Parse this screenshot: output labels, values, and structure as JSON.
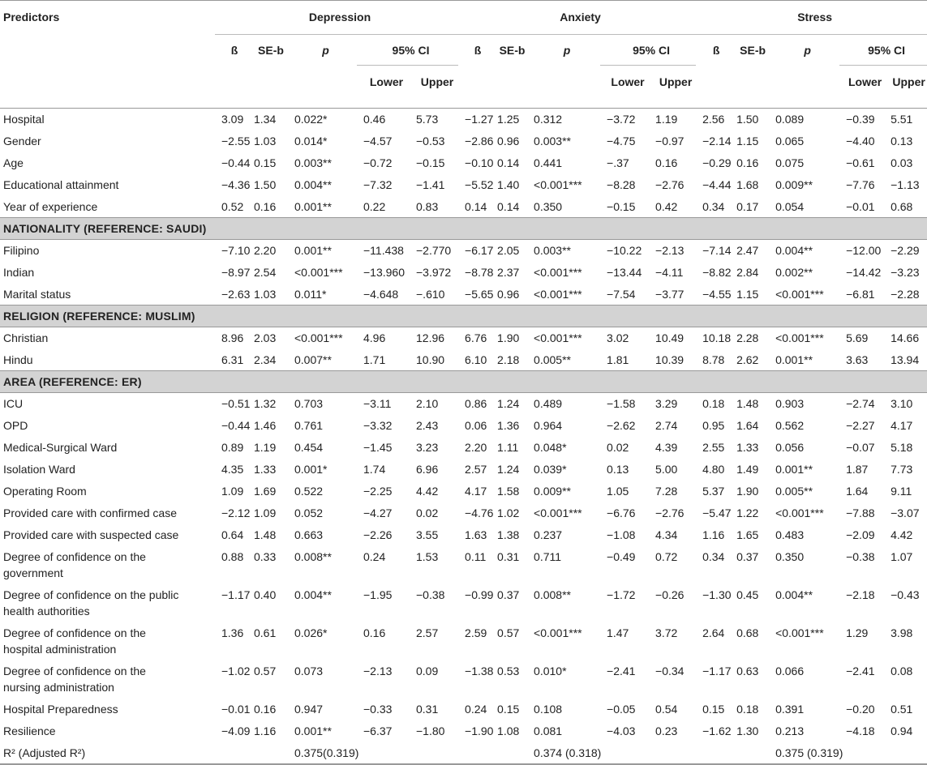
{
  "header": {
    "predictors": "Predictors",
    "groups": [
      "Depression",
      "Anxiety",
      "Stress"
    ],
    "columns": [
      "ß",
      "SE-b",
      "p",
      "95% CI"
    ],
    "ci": [
      "Lower",
      "Upper"
    ]
  },
  "rows": [
    {
      "label": "Hospital",
      "cells": [
        "3.09",
        "1.34",
        "0.022*",
        "0.46",
        "5.73",
        "−1.27",
        "1.25",
        "0.312",
        "−3.72",
        "1.19",
        "2.56",
        "1.50",
        "0.089",
        "−0.39",
        "5.51"
      ]
    },
    {
      "label": "Gender",
      "cells": [
        "−2.55",
        "1.03",
        "0.014*",
        "−4.57",
        "−0.53",
        "−2.86",
        "0.96",
        "0.003**",
        "−4.75",
        "−0.97",
        "−2.14",
        "1.15",
        "0.065",
        "−4.40",
        "0.13"
      ]
    },
    {
      "label": "Age",
      "cells": [
        "−0.44",
        "0.15",
        "0.003**",
        "−0.72",
        "−0.15",
        "−0.10",
        "0.14",
        "0.441",
        "−.37",
        "0.16",
        "−0.29",
        "0.16",
        "0.075",
        "−0.61",
        "0.03"
      ]
    },
    {
      "label": "Educational attainment",
      "cells": [
        "−4.36",
        "1.50",
        "0.004**",
        "−7.32",
        "−1.41",
        "−5.52",
        "1.40",
        "<0.001***",
        "−8.28",
        "−2.76",
        "−4.44",
        "1.68",
        "0.009**",
        "−7.76",
        "−1.13"
      ]
    },
    {
      "label": "Year of experience",
      "cells": [
        "0.52",
        "0.16",
        "0.001**",
        "0.22",
        "0.83",
        "0.14",
        "0.14",
        "0.350",
        "−0.15",
        "0.42",
        "0.34",
        "0.17",
        "0.054",
        "−0.01",
        "0.68"
      ]
    },
    {
      "section": "NATIONALITY (REFERENCE: SAUDI)"
    },
    {
      "label": "Filipino",
      "cells": [
        "−7.10",
        "2.20",
        "0.001**",
        "−11.438",
        "−2.770",
        "−6.17",
        "2.05",
        "0.003**",
        "−10.22",
        "−2.13",
        "−7.14",
        "2.47",
        "0.004**",
        "−12.00",
        "−2.29"
      ]
    },
    {
      "label": "Indian",
      "cells": [
        "−8.97",
        "2.54",
        "<0.001***",
        "−13.960",
        "−3.972",
        "−8.78",
        "2.37",
        "<0.001***",
        "−13.44",
        "−4.11",
        "−8.82",
        "2.84",
        "0.002**",
        "−14.42",
        "−3.23"
      ]
    },
    {
      "label": "Marital status",
      "cells": [
        "−2.63",
        "1.03",
        "0.011*",
        "−4.648",
        "−.610",
        "−5.65",
        "0.96",
        "<0.001***",
        "−7.54",
        "−3.77",
        "−4.55",
        "1.15",
        "<0.001***",
        "−6.81",
        "−2.28"
      ]
    },
    {
      "section": "RELIGION (REFERENCE: MUSLIM)"
    },
    {
      "label": "Christian",
      "cells": [
        "8.96",
        "2.03",
        "<0.001***",
        "4.96",
        "12.96",
        "6.76",
        "1.90",
        "<0.001***",
        "3.02",
        "10.49",
        "10.18",
        "2.28",
        "<0.001***",
        "5.69",
        "14.66"
      ]
    },
    {
      "label": "Hindu",
      "cells": [
        "6.31",
        "2.34",
        "0.007**",
        "1.71",
        "10.90",
        "6.10",
        "2.18",
        "0.005**",
        "1.81",
        "10.39",
        "8.78",
        "2.62",
        "0.001**",
        "3.63",
        "13.94"
      ]
    },
    {
      "section": "AREA (REFERENCE: ER)"
    },
    {
      "label": "ICU",
      "cells": [
        "−0.51",
        "1.32",
        "0.703",
        "−3.11",
        "2.10",
        "0.86",
        "1.24",
        "0.489",
        "−1.58",
        "3.29",
        "0.18",
        "1.48",
        "0.903",
        "−2.74",
        "3.10"
      ]
    },
    {
      "label": "OPD",
      "cells": [
        "−0.44",
        "1.46",
        "0.761",
        "−3.32",
        "2.43",
        "0.06",
        "1.36",
        "0.964",
        "−2.62",
        "2.74",
        "0.95",
        "1.64",
        "0.562",
        "−2.27",
        "4.17"
      ]
    },
    {
      "label": "Medical-Surgical Ward",
      "cells": [
        "0.89",
        "1.19",
        "0.454",
        "−1.45",
        "3.23",
        "2.20",
        "1.11",
        "0.048*",
        "0.02",
        "4.39",
        "2.55",
        "1.33",
        "0.056",
        "−0.07",
        "5.18"
      ]
    },
    {
      "label": "Isolation Ward",
      "cells": [
        "4.35",
        "1.33",
        "0.001*",
        "1.74",
        "6.96",
        "2.57",
        "1.24",
        "0.039*",
        "0.13",
        "5.00",
        "4.80",
        "1.49",
        "0.001**",
        "1.87",
        "7.73"
      ]
    },
    {
      "label": "Operating Room",
      "cells": [
        "1.09",
        "1.69",
        "0.522",
        "−2.25",
        "4.42",
        "4.17",
        "1.58",
        "0.009**",
        "1.05",
        "7.28",
        "5.37",
        "1.90",
        "0.005**",
        "1.64",
        "9.11"
      ]
    },
    {
      "label": "Provided care with confirmed case",
      "cells": [
        "−2.12",
        "1.09",
        "0.052",
        "−4.27",
        "0.02",
        "−4.76",
        "1.02",
        "<0.001***",
        "−6.76",
        "−2.76",
        "−5.47",
        "1.22",
        "<0.001***",
        "−7.88",
        "−3.07"
      ]
    },
    {
      "label": "Provided care with suspected case",
      "cells": [
        "0.64",
        "1.48",
        "0.663",
        "−2.26",
        "3.55",
        "1.63",
        "1.38",
        "0.237",
        "−1.08",
        "4.34",
        "1.16",
        "1.65",
        "0.483",
        "−2.09",
        "4.42"
      ]
    },
    {
      "label": "Degree of confidence on the government",
      "cells": [
        "0.88",
        "0.33",
        "0.008**",
        "0.24",
        "1.53",
        "0.11",
        "0.31",
        "0.711",
        "−0.49",
        "0.72",
        "0.34",
        "0.37",
        "0.350",
        "−0.38",
        "1.07"
      ]
    },
    {
      "label": "Degree of confidence on the public health authorities",
      "cells": [
        "−1.17",
        "0.40",
        "0.004**",
        "−1.95",
        "−0.38",
        "−0.99",
        "0.37",
        "0.008**",
        "−1.72",
        "−0.26",
        "−1.30",
        "0.45",
        "0.004**",
        "−2.18",
        "−0.43"
      ]
    },
    {
      "label": "Degree of confidence on the hospital administration",
      "cells": [
        "1.36",
        "0.61",
        "0.026*",
        "0.16",
        "2.57",
        "2.59",
        "0.57",
        "<0.001***",
        "1.47",
        "3.72",
        "2.64",
        "0.68",
        "<0.001***",
        "1.29",
        "3.98"
      ]
    },
    {
      "label": "Degree of confidence on the nursing administration",
      "cells": [
        "−1.02",
        "0.57",
        "0.073",
        "−2.13",
        "0.09",
        "−1.38",
        "0.53",
        "0.010*",
        "−2.41",
        "−0.34",
        "−1.17",
        "0.63",
        "0.066",
        "−2.41",
        "0.08"
      ]
    },
    {
      "label": "Hospital Preparedness",
      "cells": [
        "−0.01",
        "0.16",
        "0.947",
        "−0.33",
        "0.31",
        "0.24",
        "0.15",
        "0.108",
        "−0.05",
        "0.54",
        "0.15",
        "0.18",
        "0.391",
        "−0.20",
        "0.51"
      ]
    },
    {
      "label": "Resilience",
      "cells": [
        "−4.09",
        "1.16",
        "0.001**",
        "−6.37",
        "−1.80",
        "−1.90",
        "1.08",
        "0.081",
        "−4.03",
        "0.23",
        "−1.62",
        "1.30",
        "0.213",
        "−4.18",
        "0.94"
      ]
    }
  ],
  "footer": {
    "label": "R² (Adjusted R²)",
    "values": [
      "0.375(0.319)",
      "0.374 (0.318)",
      "0.375 (0.319)"
    ]
  }
}
